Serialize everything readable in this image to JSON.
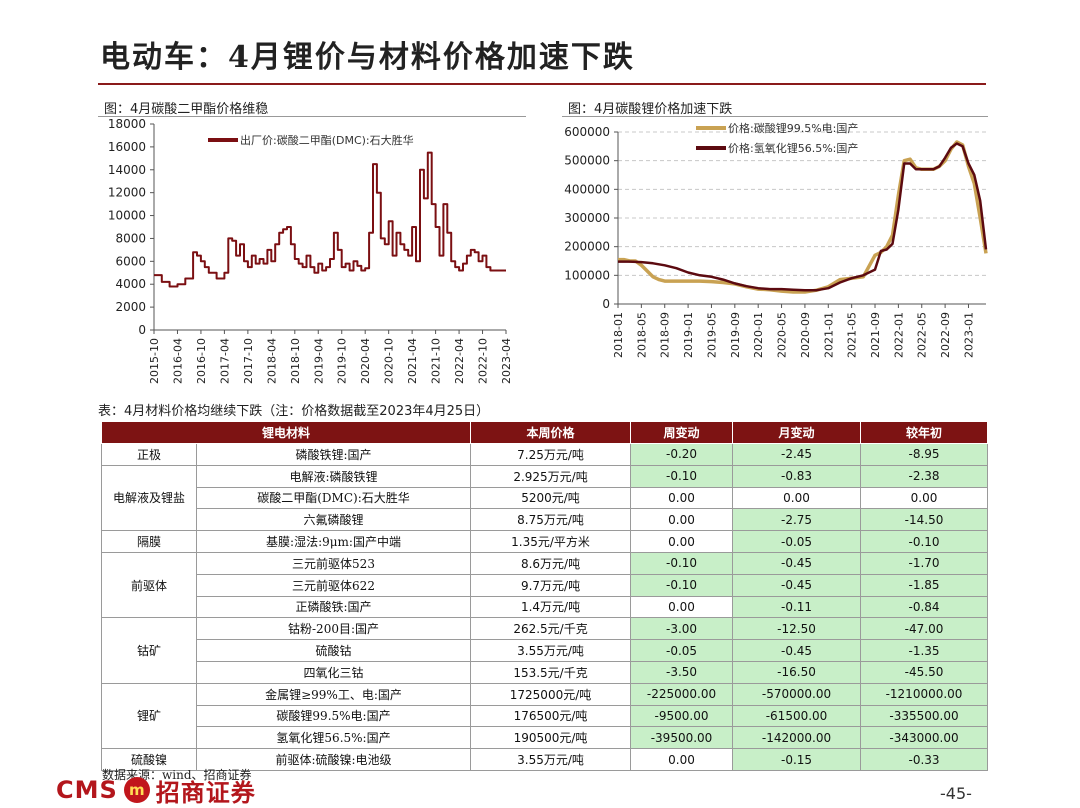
{
  "page": {
    "title": "电动车：4月锂价与材料价格加速下跌",
    "number": "-45-"
  },
  "charts": {
    "left_caption": "图：4月碳酸二甲酯价格维稳",
    "right_caption": "图：4月碳酸锂价格加速下跌"
  },
  "chart_data": [
    {
      "type": "line",
      "title": "图：4月碳酸二甲酯价格维稳",
      "ylim": [
        0,
        18000
      ],
      "yticks": [
        "0",
        "2000",
        "4000",
        "6000",
        "8000",
        "10000",
        "12000",
        "14000",
        "16000",
        "18000"
      ],
      "xticks": [
        "2015-10",
        "2016-04",
        "2016-10",
        "2017-04",
        "2017-10",
        "2018-04",
        "2018-10",
        "2019-04",
        "2019-10",
        "2020-04",
        "2020-10",
        "2021-04",
        "2021-10",
        "2022-04",
        "2022-10",
        "2023-04"
      ],
      "legend_position": "top",
      "color": "#7b0f12",
      "series": [
        {
          "name": "出厂价:碳酸二甲酯(DMC):石大胜华",
          "x": [
            "2015-10",
            "2015-12",
            "2016-02",
            "2016-04",
            "2016-06",
            "2016-08",
            "2016-09",
            "2016-10",
            "2016-11",
            "2016-12",
            "2017-02",
            "2017-04",
            "2017-05",
            "2017-06",
            "2017-07",
            "2017-08",
            "2017-09",
            "2017-10",
            "2017-11",
            "2017-12",
            "2018-01",
            "2018-02",
            "2018-03",
            "2018-04",
            "2018-05",
            "2018-06",
            "2018-07",
            "2018-08",
            "2018-09",
            "2018-10",
            "2018-11",
            "2018-12",
            "2019-01",
            "2019-02",
            "2019-03",
            "2019-04",
            "2019-05",
            "2019-06",
            "2019-07",
            "2019-08",
            "2019-09",
            "2019-10",
            "2019-11",
            "2019-12",
            "2020-01",
            "2020-02",
            "2020-03",
            "2020-04",
            "2020-05",
            "2020-06",
            "2020-07",
            "2020-08",
            "2020-09",
            "2020-10",
            "2020-11",
            "2020-12",
            "2021-01",
            "2021-02",
            "2021-03",
            "2021-04",
            "2021-05",
            "2021-06",
            "2021-07",
            "2021-08",
            "2021-09",
            "2021-10",
            "2021-11",
            "2021-12",
            "2022-01",
            "2022-02",
            "2022-03",
            "2022-04",
            "2022-05",
            "2022-06",
            "2022-07",
            "2022-08",
            "2022-09",
            "2022-10",
            "2022-11",
            "2022-12",
            "2023-01",
            "2023-02",
            "2023-03",
            "2023-04"
          ],
          "values": [
            4800,
            4200,
            3800,
            4000,
            4500,
            6800,
            6500,
            6000,
            5500,
            5000,
            4500,
            5000,
            8000,
            7800,
            6500,
            7500,
            6000,
            5500,
            6500,
            5800,
            6200,
            5800,
            7000,
            6000,
            7500,
            8500,
            8800,
            9000,
            7500,
            6200,
            5800,
            5500,
            6500,
            5500,
            5000,
            5800,
            5200,
            5500,
            6200,
            8500,
            7000,
            5500,
            5800,
            5200,
            6000,
            5600,
            5200,
            5400,
            8500,
            14500,
            12000,
            8000,
            7500,
            9500,
            6500,
            8500,
            7500,
            7000,
            6500,
            9000,
            6000,
            14000,
            11500,
            15500,
            11000,
            9000,
            6500,
            11000,
            8500,
            6000,
            5500,
            5200,
            5800,
            6500,
            7000,
            6800,
            6000,
            6500,
            5500,
            5200,
            5200,
            5200,
            5200,
            5200
          ]
        }
      ]
    },
    {
      "type": "line",
      "title": "图：4月碳酸锂价格加速下跌",
      "ylim": [
        0,
        600000
      ],
      "yticks": [
        "0",
        "100000",
        "200000",
        "300000",
        "400000",
        "500000",
        "600000"
      ],
      "xticks": [
        "2018-01",
        "2018-05",
        "2018-09",
        "2019-01",
        "2019-05",
        "2019-09",
        "2020-01",
        "2020-05",
        "2020-09",
        "2021-01",
        "2021-05",
        "2021-09",
        "2022-01",
        "2022-05",
        "2022-09",
        "2023-01"
      ],
      "grid": true,
      "legend_position": "top-right",
      "series": [
        {
          "name": "价格:碳酸锂99.5%电:国产",
          "color": "#c9a253",
          "x": [
            "2018-01",
            "2018-02",
            "2018-03",
            "2018-04",
            "2018-05",
            "2018-06",
            "2018-07",
            "2018-08",
            "2018-09",
            "2018-10",
            "2018-11",
            "2018-12",
            "2019-01",
            "2019-03",
            "2019-05",
            "2019-07",
            "2019-09",
            "2019-11",
            "2020-01",
            "2020-03",
            "2020-05",
            "2020-07",
            "2020-09",
            "2020-11",
            "2021-01",
            "2021-03",
            "2021-05",
            "2021-07",
            "2021-09",
            "2021-10",
            "2021-11",
            "2021-12",
            "2022-01",
            "2022-02",
            "2022-03",
            "2022-04",
            "2022-05",
            "2022-06",
            "2022-07",
            "2022-08",
            "2022-09",
            "2022-10",
            "2022-11",
            "2022-12",
            "2023-01",
            "2023-02",
            "2023-03",
            "2023-04"
          ],
          "values": [
            155000,
            155000,
            150000,
            150000,
            135000,
            115000,
            95000,
            85000,
            80000,
            80000,
            80000,
            80000,
            80000,
            80000,
            78000,
            75000,
            70000,
            60000,
            52000,
            50000,
            45000,
            42000,
            42000,
            48000,
            60000,
            85000,
            90000,
            95000,
            170000,
            180000,
            200000,
            240000,
            380000,
            500000,
            505000,
            475000,
            470000,
            470000,
            470000,
            480000,
            500000,
            540000,
            565000,
            555000,
            480000,
            420000,
            300000,
            176500
          ]
        },
        {
          "name": "价格:氢氧化锂56.5%:国产",
          "color": "#5c0a10",
          "x": [
            "2018-01",
            "2018-03",
            "2018-05",
            "2018-07",
            "2018-09",
            "2018-11",
            "2019-01",
            "2019-03",
            "2019-05",
            "2019-07",
            "2019-09",
            "2019-11",
            "2020-01",
            "2020-03",
            "2020-05",
            "2020-07",
            "2020-09",
            "2020-11",
            "2021-01",
            "2021-03",
            "2021-05",
            "2021-07",
            "2021-09",
            "2021-10",
            "2021-11",
            "2021-12",
            "2022-01",
            "2022-02",
            "2022-03",
            "2022-04",
            "2022-05",
            "2022-06",
            "2022-07",
            "2022-08",
            "2022-09",
            "2022-10",
            "2022-11",
            "2022-12",
            "2023-01",
            "2023-02",
            "2023-03",
            "2023-04"
          ],
          "values": [
            148000,
            148000,
            146000,
            142000,
            135000,
            125000,
            110000,
            100000,
            95000,
            85000,
            72000,
            62000,
            55000,
            52000,
            52000,
            50000,
            48000,
            48000,
            55000,
            75000,
            90000,
            100000,
            120000,
            185000,
            190000,
            210000,
            330000,
            490000,
            490000,
            470000,
            470000,
            470000,
            470000,
            480000,
            510000,
            545000,
            560000,
            550000,
            490000,
            450000,
            360000,
            190500
          ]
        }
      ]
    }
  ],
  "table": {
    "caption": "表：4月材料价格均继续下跌（注：价格数据截至2023年4月25日）",
    "headers": [
      "锂电材料",
      "本周价格",
      "周变动",
      "月变动",
      "较年初"
    ],
    "groups": [
      {
        "category": "正极",
        "rows": [
          {
            "name": "磷酸铁锂:国产",
            "price": "7.25万元/吨",
            "week": "-0.20",
            "month": "-2.45",
            "ytd": "-8.95"
          }
        ]
      },
      {
        "category": "电解液及锂盐",
        "rows": [
          {
            "name": "电解液:磷酸铁锂",
            "price": "2.925万元/吨",
            "week": "-0.10",
            "month": "-0.83",
            "ytd": "-2.38"
          },
          {
            "name": "碳酸二甲酯(DMC):石大胜华",
            "price": "5200元/吨",
            "week": "0.00",
            "month": "0.00",
            "ytd": "0.00"
          },
          {
            "name": "六氟磷酸锂",
            "price": "8.75万元/吨",
            "week": "0.00",
            "month": "-2.75",
            "ytd": "-14.50"
          }
        ]
      },
      {
        "category": "隔膜",
        "rows": [
          {
            "name": "基膜:湿法:9μm:国产中端",
            "price": "1.35元/平方米",
            "week": "0.00",
            "month": "-0.05",
            "ytd": "-0.10"
          }
        ]
      },
      {
        "category": "前驱体",
        "rows": [
          {
            "name": "三元前驱体523",
            "price": "8.6万元/吨",
            "week": "-0.10",
            "month": "-0.45",
            "ytd": "-1.70"
          },
          {
            "name": "三元前驱体622",
            "price": "9.7万元/吨",
            "week": "-0.10",
            "month": "-0.45",
            "ytd": "-1.85"
          },
          {
            "name": "正磷酸铁:国产",
            "price": "1.4万元/吨",
            "week": "0.00",
            "month": "-0.11",
            "ytd": "-0.84"
          }
        ]
      },
      {
        "category": "钴矿",
        "rows": [
          {
            "name": "钴粉-200目:国产",
            "price": "262.5元/千克",
            "week": "-3.00",
            "month": "-12.50",
            "ytd": "-47.00"
          },
          {
            "name": "硫酸钴",
            "price": "3.55万元/吨",
            "week": "-0.05",
            "month": "-0.45",
            "ytd": "-1.35"
          },
          {
            "name": "四氧化三钴",
            "price": "153.5元/千克",
            "week": "-3.50",
            "month": "-16.50",
            "ytd": "-45.50"
          }
        ]
      },
      {
        "category": "锂矿",
        "rows": [
          {
            "name": "金属锂≥99%工、电:国产",
            "price": "1725000元/吨",
            "week": "-225000.00",
            "month": "-570000.00",
            "ytd": "-1210000.00"
          },
          {
            "name": "碳酸锂99.5%电:国产",
            "price": "176500元/吨",
            "week": "-9500.00",
            "month": "-61500.00",
            "ytd": "-335500.00"
          },
          {
            "name": "氢氧化锂56.5%:国产",
            "price": "190500元/吨",
            "week": "-39500.00",
            "month": "-142000.00",
            "ytd": "-343000.00"
          }
        ]
      },
      {
        "category": "硫酸镍",
        "rows": [
          {
            "name": "前驱体:硫酸镍:电池级",
            "price": "3.55万元/吨",
            "week": "0.00",
            "month": "-0.15",
            "ytd": "-0.33"
          }
        ]
      }
    ],
    "negative_color": "#c8efc8",
    "header_color": "#7d1313"
  },
  "source": "数据来源：wind、招商证券",
  "logo": {
    "text": "CMS",
    "mark": "m",
    "name": "招商证券"
  }
}
